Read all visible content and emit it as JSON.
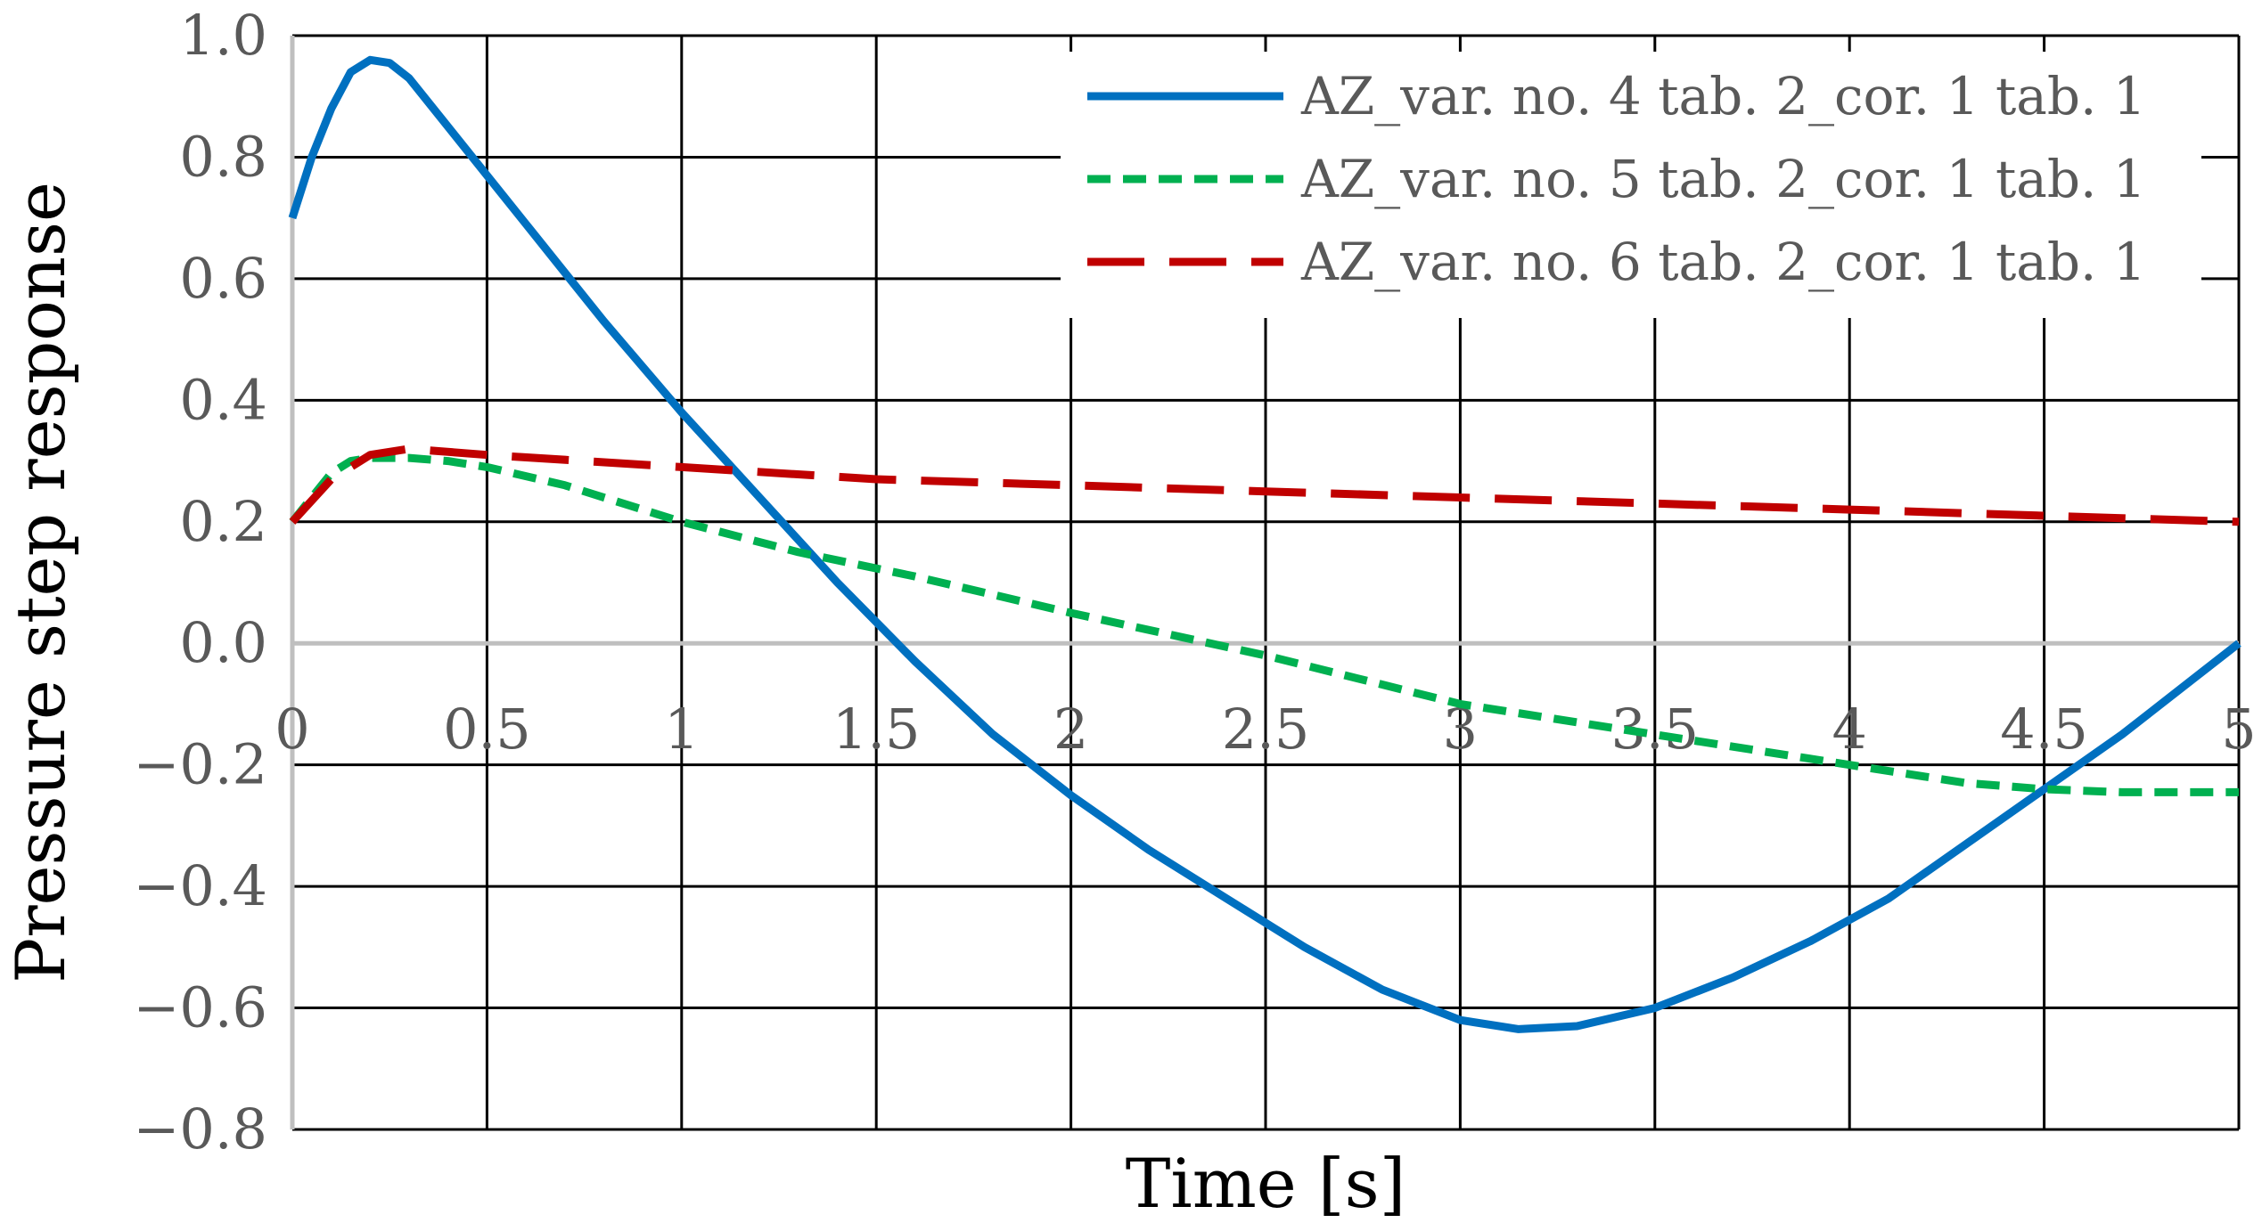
{
  "chart_data": {
    "type": "line",
    "xlabel": "Time [s]",
    "ylabel": "Pressure step response",
    "xlim": [
      0,
      5
    ],
    "ylim": [
      -0.8,
      1.0
    ],
    "x_ticks": [
      "0",
      "0.5",
      "1",
      "1.5",
      "2",
      "2.5",
      "3",
      "3.5",
      "4",
      "4.5",
      "5"
    ],
    "y_ticks": [
      "1.0",
      "0.8",
      "0.6",
      "0.4",
      "0.2",
      "0.0",
      "−0.2",
      "−0.4",
      "−0.6",
      "−0.8"
    ],
    "grid": true,
    "legend_position": "top-right",
    "series": [
      {
        "name": "AZ_var. no. 4 tab. 2_cor. 1 tab. 1",
        "color": "#0070C0",
        "style": "solid",
        "x": [
          0,
          0.05,
          0.1,
          0.15,
          0.2,
          0.25,
          0.3,
          0.4,
          0.5,
          0.6,
          0.8,
          1.0,
          1.2,
          1.4,
          1.6,
          1.8,
          2.0,
          2.2,
          2.4,
          2.6,
          2.8,
          3.0,
          3.15,
          3.3,
          3.5,
          3.7,
          3.9,
          4.1,
          4.3,
          4.5,
          4.7,
          4.9,
          5.0
        ],
        "y": [
          0.7,
          0.8,
          0.88,
          0.94,
          0.96,
          0.955,
          0.93,
          0.85,
          0.77,
          0.69,
          0.53,
          0.38,
          0.24,
          0.1,
          -0.03,
          -0.15,
          -0.25,
          -0.34,
          -0.42,
          -0.5,
          -0.57,
          -0.62,
          -0.635,
          -0.63,
          -0.6,
          -0.55,
          -0.49,
          -0.42,
          -0.33,
          -0.24,
          -0.15,
          -0.05,
          0.0
        ]
      },
      {
        "name": "AZ_var. no. 5 tab. 2_cor. 1 tab. 1",
        "color": "#00B050",
        "style": "dashed",
        "x": [
          0,
          0.1,
          0.15,
          0.2,
          0.3,
          0.4,
          0.5,
          0.7,
          1.0,
          1.3,
          1.6,
          2.0,
          2.5,
          3.0,
          3.5,
          4.0,
          4.3,
          4.5,
          4.7,
          5.0
        ],
        "y": [
          0.2,
          0.28,
          0.3,
          0.305,
          0.305,
          0.3,
          0.29,
          0.26,
          0.2,
          0.15,
          0.11,
          0.05,
          -0.02,
          -0.1,
          -0.15,
          -0.2,
          -0.23,
          -0.24,
          -0.245,
          -0.245
        ]
      },
      {
        "name": "AZ_var. no. 6 tab. 2_cor. 1 tab. 1",
        "color": "#C00000",
        "style": "long-dash",
        "x": [
          0,
          0.1,
          0.2,
          0.3,
          0.5,
          1.0,
          1.5,
          2.0,
          2.5,
          3.0,
          3.5,
          4.0,
          4.5,
          5.0
        ],
        "y": [
          0.2,
          0.27,
          0.31,
          0.32,
          0.31,
          0.29,
          0.27,
          0.26,
          0.25,
          0.24,
          0.23,
          0.22,
          0.21,
          0.2
        ]
      }
    ]
  }
}
